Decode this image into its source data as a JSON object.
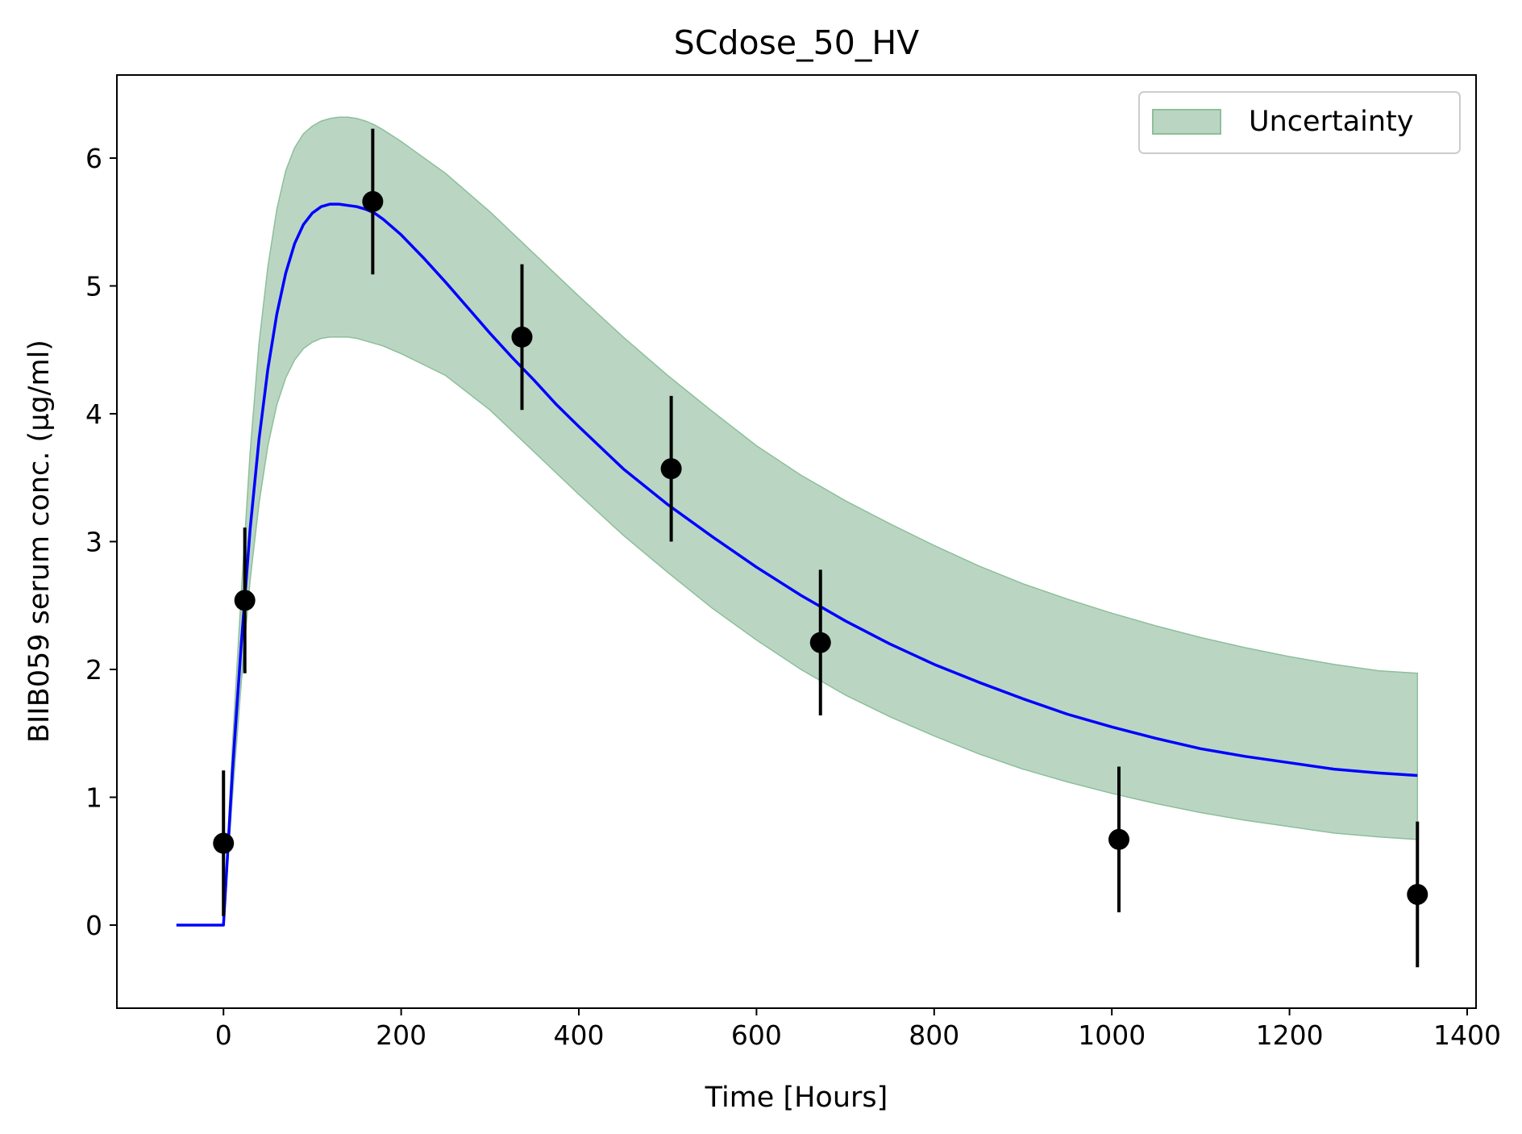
{
  "chart_data": {
    "type": "line",
    "title": "SCdose_50_HV",
    "xlabel": "Time [Hours]",
    "ylabel": "BIIB059 serum conc. (µg/ml)",
    "xlim": [
      -120,
      1410
    ],
    "ylim": [
      -0.65,
      6.65
    ],
    "xticks": [
      0,
      200,
      400,
      600,
      800,
      1000,
      1200,
      1400
    ],
    "yticks": [
      0,
      1,
      2,
      3,
      4,
      5,
      6
    ],
    "xtick_labels": [
      "0",
      "200",
      "400",
      "600",
      "800",
      "1000",
      "1200",
      "1400"
    ],
    "ytick_labels": [
      "0",
      "1",
      "2",
      "3",
      "4",
      "5",
      "6"
    ],
    "grid": false,
    "legend": {
      "position": "top-right",
      "entries": [
        {
          "label": "Uncertainty",
          "color": "#bad6c3",
          "edge": "#8dbf9a"
        }
      ]
    },
    "model_curve": {
      "color": "#0000ff",
      "x": [
        -53,
        0,
        10,
        20,
        30,
        40,
        50,
        60,
        70,
        80,
        90,
        100,
        110,
        120,
        130,
        140,
        150,
        160,
        170,
        180,
        200,
        225,
        250,
        275,
        300,
        325,
        350,
        375,
        400,
        450,
        500,
        550,
        600,
        650,
        700,
        750,
        800,
        850,
        900,
        950,
        1000,
        1050,
        1100,
        1150,
        1200,
        1250,
        1300,
        1344
      ],
      "y": [
        0,
        0,
        1.2,
        2.2,
        3.1,
        3.8,
        4.35,
        4.78,
        5.1,
        5.33,
        5.48,
        5.57,
        5.62,
        5.64,
        5.64,
        5.63,
        5.62,
        5.6,
        5.57,
        5.52,
        5.4,
        5.22,
        5.03,
        4.83,
        4.63,
        4.44,
        4.26,
        4.07,
        3.9,
        3.57,
        3.29,
        3.04,
        2.8,
        2.58,
        2.38,
        2.2,
        2.04,
        1.9,
        1.77,
        1.65,
        1.55,
        1.46,
        1.38,
        1.32,
        1.27,
        1.22,
        1.19,
        1.17
      ]
    },
    "uncertainty_band": {
      "label": "Uncertainty",
      "color": "#bad6c3",
      "edge": "#8dbf9a",
      "x": [
        0,
        10,
        20,
        30,
        40,
        50,
        60,
        70,
        80,
        90,
        100,
        110,
        120,
        130,
        140,
        150,
        160,
        170,
        180,
        200,
        250,
        300,
        350,
        400,
        450,
        500,
        550,
        600,
        650,
        700,
        750,
        800,
        850,
        900,
        950,
        1000,
        1050,
        1100,
        1150,
        1200,
        1250,
        1300,
        1344
      ],
      "upper": [
        0,
        1.4,
        2.6,
        3.7,
        4.55,
        5.15,
        5.6,
        5.9,
        6.08,
        6.19,
        6.25,
        6.29,
        6.31,
        6.32,
        6.32,
        6.31,
        6.29,
        6.26,
        6.22,
        6.13,
        5.88,
        5.58,
        5.25,
        4.92,
        4.6,
        4.3,
        4.02,
        3.75,
        3.52,
        3.32,
        3.14,
        2.97,
        2.81,
        2.67,
        2.55,
        2.44,
        2.34,
        2.25,
        2.17,
        2.1,
        2.04,
        1.99,
        1.97
      ],
      "lower": [
        0,
        1.0,
        1.9,
        2.7,
        3.3,
        3.75,
        4.07,
        4.28,
        4.42,
        4.51,
        4.56,
        4.59,
        4.6,
        4.6,
        4.6,
        4.59,
        4.57,
        4.55,
        4.53,
        4.47,
        4.3,
        4.03,
        3.7,
        3.37,
        3.05,
        2.76,
        2.48,
        2.23,
        2.0,
        1.8,
        1.63,
        1.48,
        1.34,
        1.22,
        1.12,
        1.03,
        0.95,
        0.88,
        0.82,
        0.77,
        0.72,
        0.69,
        0.67
      ]
    },
    "observed": {
      "color": "#000000",
      "x": [
        0,
        24,
        168,
        336,
        504,
        672,
        1008,
        1344
      ],
      "y": [
        0.64,
        2.54,
        5.66,
        4.6,
        3.57,
        2.21,
        0.67,
        0.24
      ],
      "err_low": [
        0.07,
        1.97,
        5.09,
        4.03,
        3.0,
        1.64,
        0.1,
        -0.33
      ],
      "err_high": [
        1.21,
        3.11,
        6.23,
        5.17,
        4.14,
        2.78,
        1.24,
        0.81
      ]
    }
  }
}
